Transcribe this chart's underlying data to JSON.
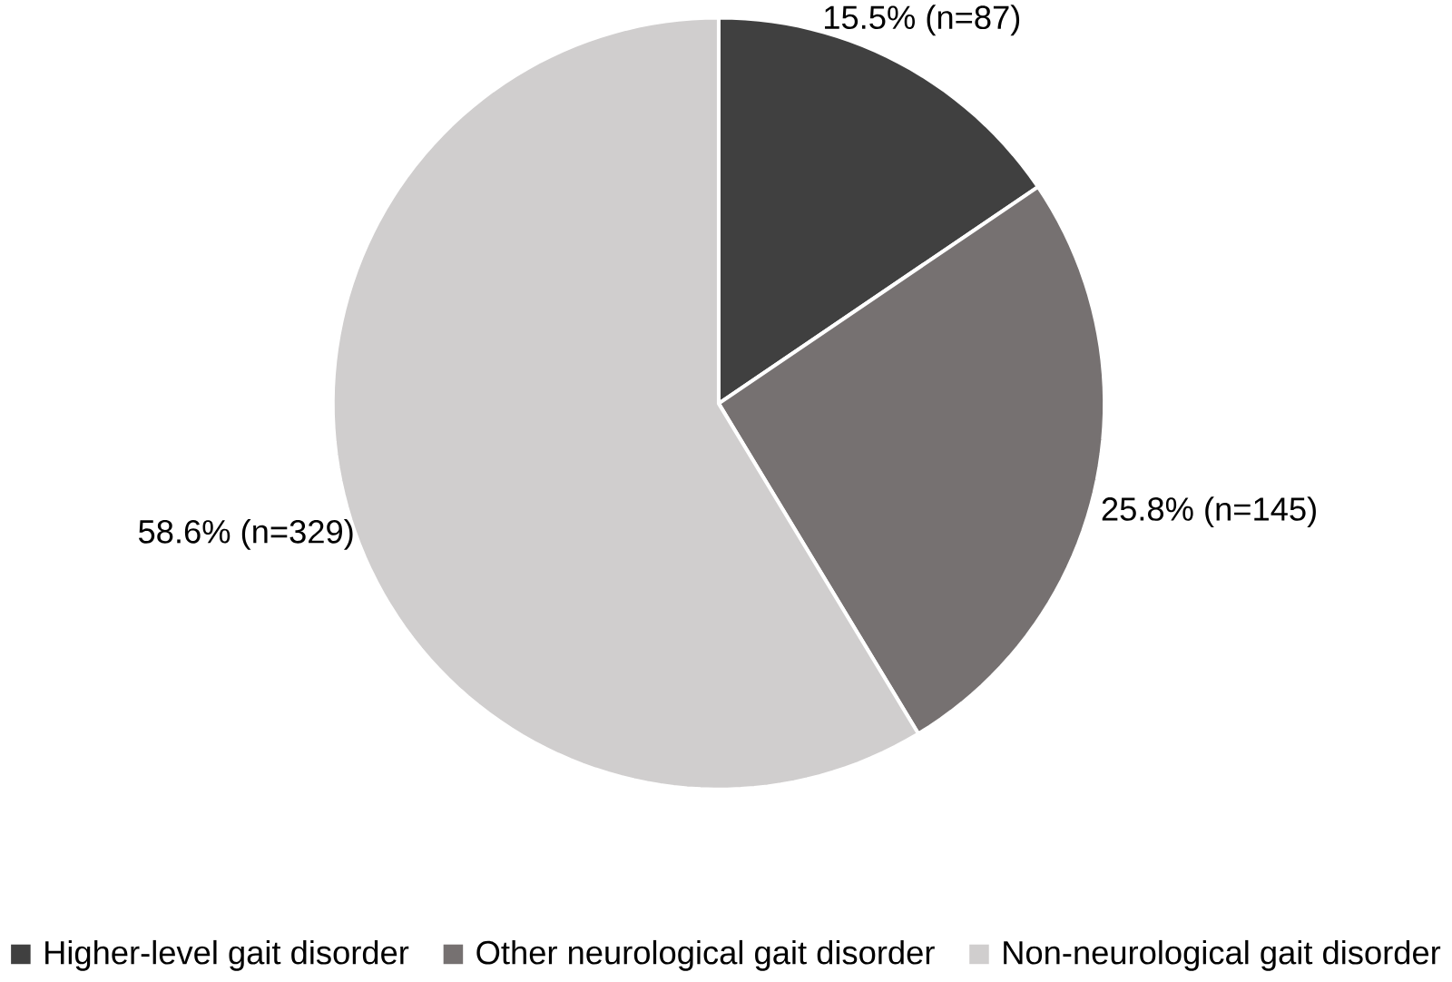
{
  "chart_data": {
    "type": "pie",
    "categories": [
      "Higher-level gait disorder",
      "Other neurological gait disorder",
      "Non-neurological gait disorder"
    ],
    "values": [
      15.5,
      25.8,
      58.6
    ],
    "value_labels": [
      "15.5% (n=87)",
      "25.8% (n=145)",
      "58.6% (n=329)"
    ],
    "colors": [
      "#404040",
      "#767171",
      "#d0cece"
    ],
    "legend": "bottom"
  }
}
